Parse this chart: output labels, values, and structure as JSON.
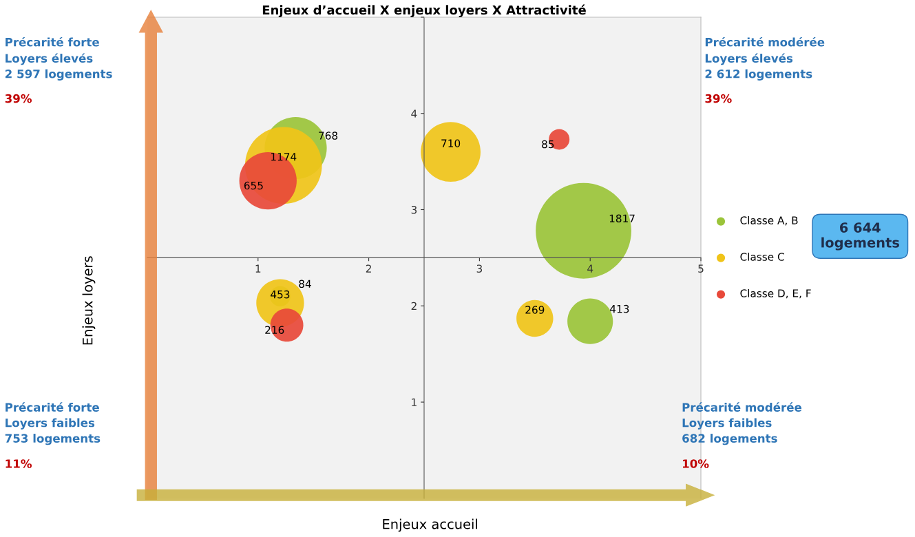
{
  "chart_data": {
    "type": "bubble",
    "title": "Enjeux d’accueil X enjeux loyers X Attractivité",
    "xlabel": "Enjeux accueil",
    "ylabel": "Enjeux loyers",
    "xlim": [
      0,
      5
    ],
    "ylim": [
      0,
      5
    ],
    "xticks": [
      1,
      2,
      3,
      4,
      5
    ],
    "yticks": [
      1,
      2,
      3,
      4,
      {
        "value": 5,
        "label": null
      }
    ],
    "series": [
      {
        "name": "Classe A, B",
        "color": "#9bc43a",
        "x": [
          1.34,
          3.94,
          1.2,
          4.0
        ],
        "values": [
          3.64,
          2.78,
          2.1,
          1.84
        ],
        "sizes": [
          768,
          1817,
          84,
          413
        ],
        "value_labels": [
          "768",
          "1817",
          "84",
          "413"
        ]
      },
      {
        "name": "Classe C",
        "color": "#f0c419",
        "x": [
          1.23,
          2.74,
          1.2,
          3.5
        ],
        "values": [
          3.46,
          3.6,
          2.03,
          1.87
        ],
        "sizes": [
          1174,
          710,
          453,
          269
        ],
        "value_labels": [
          "1174",
          "710",
          "453",
          "269"
        ]
      },
      {
        "name": "Classe D, E, F",
        "color": "#e8493a",
        "x": [
          1.09,
          3.72,
          1.26
        ],
        "values": [
          3.3,
          3.73,
          1.8
        ],
        "sizes": [
          655,
          85,
          216
        ],
        "value_labels": [
          "655",
          "85",
          "216"
        ]
      }
    ],
    "legend": "right",
    "grid": false,
    "annotations": [
      "Précarité forte\nLoyers élevés\n2 597 logements",
      "39%",
      "Précarité modérée\nLoyers élevés\n2 612 logements",
      "39%",
      "Précarité forte\nLoyers faibles\n753 logements",
      "11%",
      "Précarité modérée\nLoyers faibles\n682 logements",
      "10%",
      "6 644\nlogements"
    ]
  }
}
